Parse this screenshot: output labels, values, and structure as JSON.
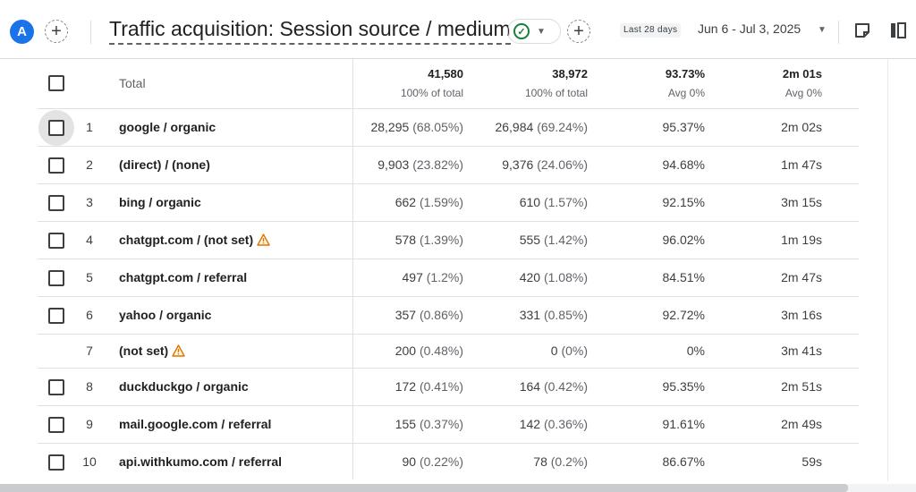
{
  "header": {
    "avatar_letter": "A",
    "title": "Traffic acquisition: Session source / medium",
    "date_chip": "Last 28 days",
    "date_range": "Jun 6 - Jul 3, 2025"
  },
  "colors": {
    "accent": "#1a73e8",
    "success": "#188038",
    "warning": "#e37400"
  },
  "table": {
    "total": {
      "label": "Total",
      "c1": "41,580",
      "c1_sub": "100% of total",
      "c2": "38,972",
      "c2_sub": "100% of total",
      "c3": "93.73%",
      "c3_sub": "Avg 0%",
      "c4": "2m 01s",
      "c4_sub": "Avg 0%"
    },
    "rows": [
      {
        "idx": "1",
        "source": "google / organic",
        "c1": "28,295",
        "c1p": "(68.05%)",
        "c2": "26,984",
        "c2p": "(69.24%)",
        "c3": "95.37%",
        "c4": "2m 02s"
      },
      {
        "idx": "2",
        "source": "(direct) / (none)",
        "c1": "9,903",
        "c1p": "(23.82%)",
        "c2": "9,376",
        "c2p": "(24.06%)",
        "c3": "94.68%",
        "c4": "1m 47s"
      },
      {
        "idx": "3",
        "source": "bing / organic",
        "c1": "662",
        "c1p": "(1.59%)",
        "c2": "610",
        "c2p": "(1.57%)",
        "c3": "92.15%",
        "c4": "3m 15s"
      },
      {
        "idx": "4",
        "source": "chatgpt.com / (not set)",
        "c1": "578",
        "c1p": "(1.39%)",
        "c2": "555",
        "c2p": "(1.42%)",
        "c3": "96.02%",
        "c4": "1m 19s"
      },
      {
        "idx": "5",
        "source": "chatgpt.com / referral",
        "c1": "497",
        "c1p": "(1.2%)",
        "c2": "420",
        "c2p": "(1.08%)",
        "c3": "84.51%",
        "c4": "2m 47s"
      },
      {
        "idx": "6",
        "source": "yahoo / organic",
        "c1": "357",
        "c1p": "(0.86%)",
        "c2": "331",
        "c2p": "(0.85%)",
        "c3": "92.72%",
        "c4": "3m 16s"
      },
      {
        "idx": "7",
        "source": "(not set)",
        "c1": "200",
        "c1p": "(0.48%)",
        "c2": "0",
        "c2p": "(0%)",
        "c3": "0%",
        "c4": "3m 41s"
      },
      {
        "idx": "8",
        "source": "duckduckgo / organic",
        "c1": "172",
        "c1p": "(0.41%)",
        "c2": "164",
        "c2p": "(0.42%)",
        "c3": "95.35%",
        "c4": "2m 51s"
      },
      {
        "idx": "9",
        "source": "mail.google.com / referral",
        "c1": "155",
        "c1p": "(0.37%)",
        "c2": "142",
        "c2p": "(0.36%)",
        "c3": "91.61%",
        "c4": "2m 49s"
      },
      {
        "idx": "10",
        "source": "api.withkumo.com / referral",
        "c1": "90",
        "c1p": "(0.22%)",
        "c2": "78",
        "c2p": "(0.2%)",
        "c3": "86.67%",
        "c4": "59s"
      }
    ]
  }
}
